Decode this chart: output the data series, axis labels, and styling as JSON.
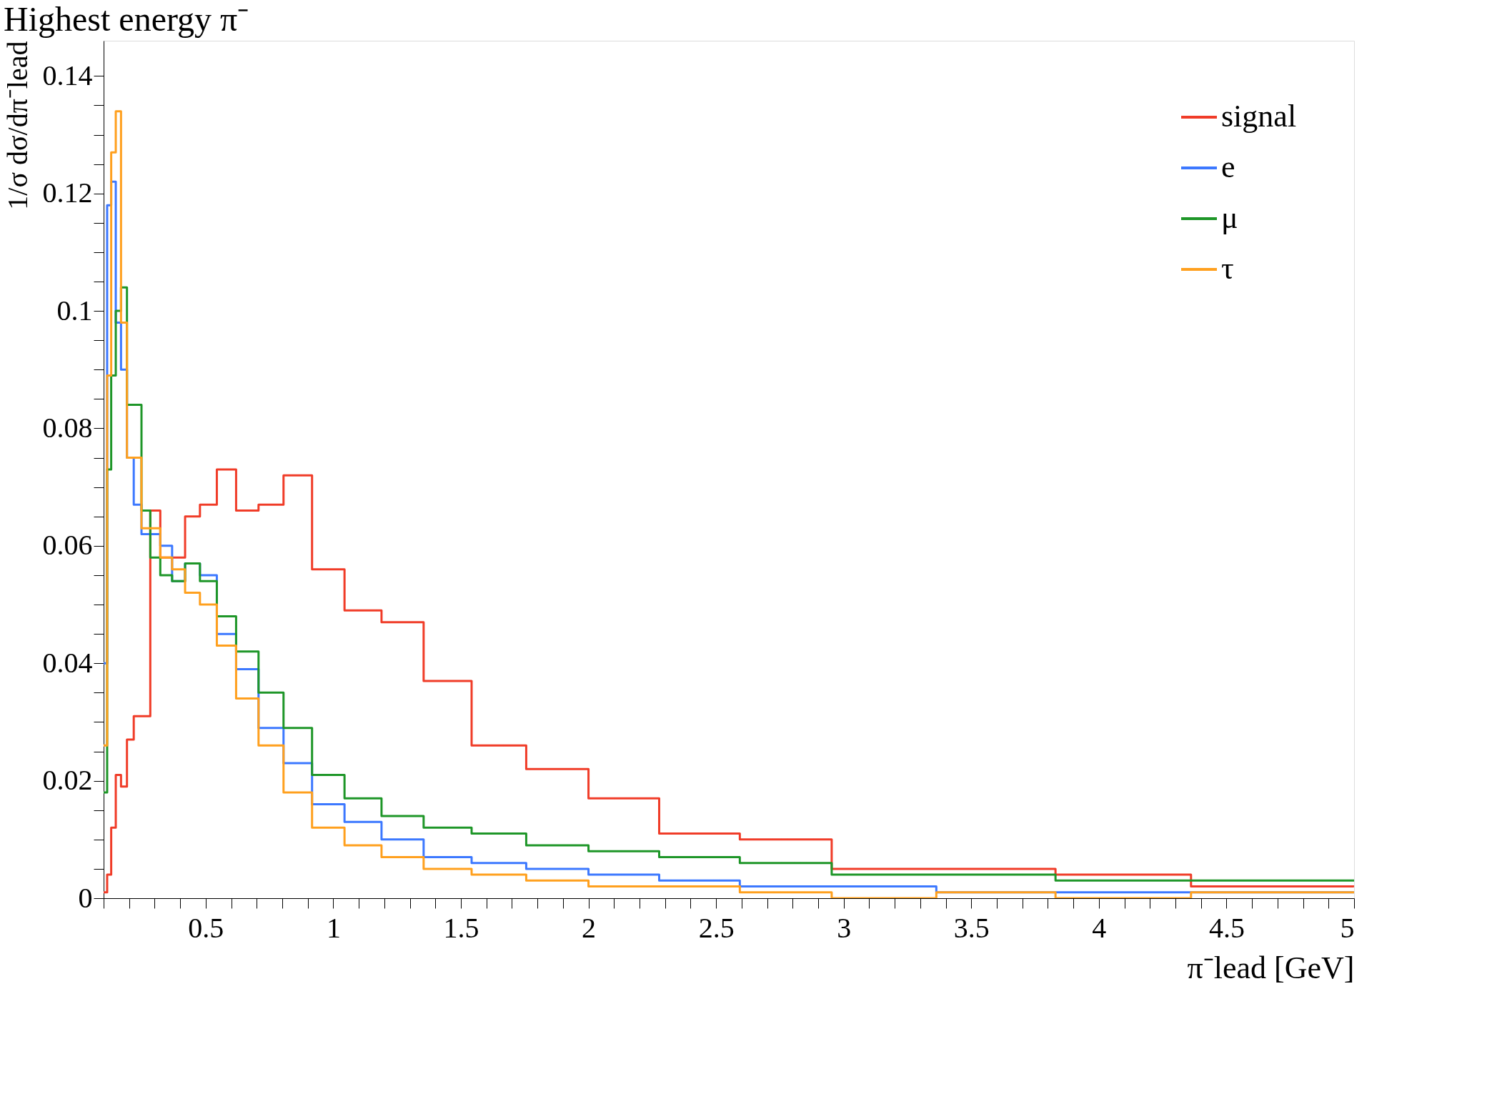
{
  "chart_data": {
    "type": "histogram",
    "title": "Highest energy π⁻",
    "xlabel": "π⁻lead [GeV]",
    "ylabel": "1/σ dσ/dπ⁻lead",
    "bins": [
      0.1,
      0.1139,
      0.1297,
      0.1477,
      0.1682,
      0.1915,
      0.2181,
      0.2484,
      0.2829,
      0.3221,
      0.3684,
      0.4193,
      0.4775,
      0.5437,
      0.6192,
      0.7071,
      0.805,
      0.9168,
      1.044,
      1.189,
      1.354,
      1.542,
      1.756,
      2.0,
      2.277,
      2.593,
      2.953,
      3.363,
      3.83,
      4.361,
      5.0
    ],
    "series": [
      {
        "name": "signal",
        "color": "#f03c28",
        "values": [
          0.001,
          0.004,
          0.012,
          0.021,
          0.019,
          0.027,
          0.031,
          0.031,
          0.066,
          0.058,
          0.058,
          0.065,
          0.067,
          0.073,
          0.066,
          0.067,
          0.072,
          0.056,
          0.049,
          0.047,
          0.037,
          0.026,
          0.022,
          0.017,
          0.011,
          0.01,
          0.005,
          0.005,
          0.004,
          0.002
        ]
      },
      {
        "name": "e",
        "color": "#3c78ff",
        "values": [
          0.04,
          0.118,
          0.122,
          0.098,
          0.09,
          0.075,
          0.067,
          0.062,
          0.062,
          0.06,
          0.054,
          0.057,
          0.055,
          0.045,
          0.039,
          0.029,
          0.023,
          0.016,
          0.013,
          0.01,
          0.007,
          0.006,
          0.005,
          0.004,
          0.003,
          0.002,
          0.002,
          0.001,
          0.001,
          0.001
        ]
      },
      {
        "name": "μ",
        "color": "#1e9628",
        "values": [
          0.018,
          0.073,
          0.089,
          0.1,
          0.104,
          0.084,
          0.084,
          0.066,
          0.058,
          0.055,
          0.054,
          0.057,
          0.054,
          0.048,
          0.042,
          0.035,
          0.029,
          0.021,
          0.017,
          0.014,
          0.012,
          0.011,
          0.009,
          0.008,
          0.007,
          0.006,
          0.004,
          0.004,
          0.003,
          0.003
        ]
      },
      {
        "name": "τ",
        "color": "#ffa01e",
        "values": [
          0.026,
          0.089,
          0.127,
          0.134,
          0.098,
          0.075,
          0.075,
          0.063,
          0.063,
          0.058,
          0.056,
          0.052,
          0.05,
          0.043,
          0.034,
          0.026,
          0.018,
          0.012,
          0.009,
          0.007,
          0.005,
          0.004,
          0.003,
          0.002,
          0.002,
          0.001,
          0.0,
          0.001,
          0.0,
          0.001
        ]
      }
    ],
    "xlim": [
      0.1,
      5
    ],
    "ylim": [
      0,
      0.146
    ],
    "xticks": [
      {
        "value": 0.1,
        "label": null
      },
      {
        "value": 0.2,
        "label": null
      },
      {
        "value": 0.3,
        "label": null
      },
      {
        "value": 0.4,
        "label": null
      },
      0.5,
      {
        "value": 0.6,
        "label": null
      },
      {
        "value": 0.7,
        "label": null
      },
      {
        "value": 0.8,
        "label": null
      },
      {
        "value": 0.9,
        "label": null
      },
      1,
      {
        "value": 1.1,
        "label": null
      },
      {
        "value": 1.2,
        "label": null
      },
      {
        "value": 1.3,
        "label": null
      },
      {
        "value": 1.4,
        "label": null
      },
      1.5,
      {
        "value": 1.6,
        "label": null
      },
      {
        "value": 1.7,
        "label": null
      },
      {
        "value": 1.8,
        "label": null
      },
      {
        "value": 1.9,
        "label": null
      },
      2,
      {
        "value": 2.1,
        "label": null
      },
      {
        "value": 2.2,
        "label": null
      },
      {
        "value": 2.3,
        "label": null
      },
      {
        "value": 2.4,
        "label": null
      },
      2.5,
      {
        "value": 2.6,
        "label": null
      },
      {
        "value": 2.7,
        "label": null
      },
      {
        "value": 2.8,
        "label": null
      },
      {
        "value": 2.9,
        "label": null
      },
      3,
      {
        "value": 3.1,
        "label": null
      },
      {
        "value": 3.2,
        "label": null
      },
      {
        "value": 3.3,
        "label": null
      },
      {
        "value": 3.4,
        "label": null
      },
      3.5,
      {
        "value": 3.6,
        "label": null
      },
      {
        "value": 3.7,
        "label": null
      },
      {
        "value": 3.8,
        "label": null
      },
      {
        "value": 3.9,
        "label": null
      },
      4,
      {
        "value": 4.1,
        "label": null
      },
      {
        "value": 4.2,
        "label": null
      },
      {
        "value": 4.3,
        "label": null
      },
      {
        "value": 4.4,
        "label": null
      },
      4.5,
      {
        "value": 4.6,
        "label": null
      },
      {
        "value": 4.7,
        "label": null
      },
      {
        "value": 4.8,
        "label": null
      },
      {
        "value": 4.9,
        "label": null
      },
      5
    ],
    "yticks": [
      0,
      {
        "value": 0.005,
        "label": null
      },
      {
        "value": 0.01,
        "label": null
      },
      {
        "value": 0.015,
        "label": null
      },
      0.02,
      {
        "value": 0.025,
        "label": null
      },
      {
        "value": 0.03,
        "label": null
      },
      {
        "value": 0.035,
        "label": null
      },
      0.04,
      {
        "value": 0.045,
        "label": null
      },
      {
        "value": 0.05,
        "label": null
      },
      {
        "value": 0.055,
        "label": null
      },
      0.06,
      {
        "value": 0.065,
        "label": null
      },
      {
        "value": 0.07,
        "label": null
      },
      {
        "value": 0.075,
        "label": null
      },
      0.08,
      {
        "value": 0.085,
        "label": null
      },
      {
        "value": 0.09,
        "label": null
      },
      {
        "value": 0.095,
        "label": null
      },
      0.1,
      {
        "value": 0.105,
        "label": null
      },
      {
        "value": 0.11,
        "label": null
      },
      {
        "value": 0.115,
        "label": null
      },
      0.12,
      {
        "value": 0.125,
        "label": null
      },
      {
        "value": 0.13,
        "label": null
      },
      {
        "value": 0.135,
        "label": null
      },
      0.14
    ],
    "legend": "top right",
    "grid": false,
    "line_style": "solid",
    "marker": "none"
  }
}
